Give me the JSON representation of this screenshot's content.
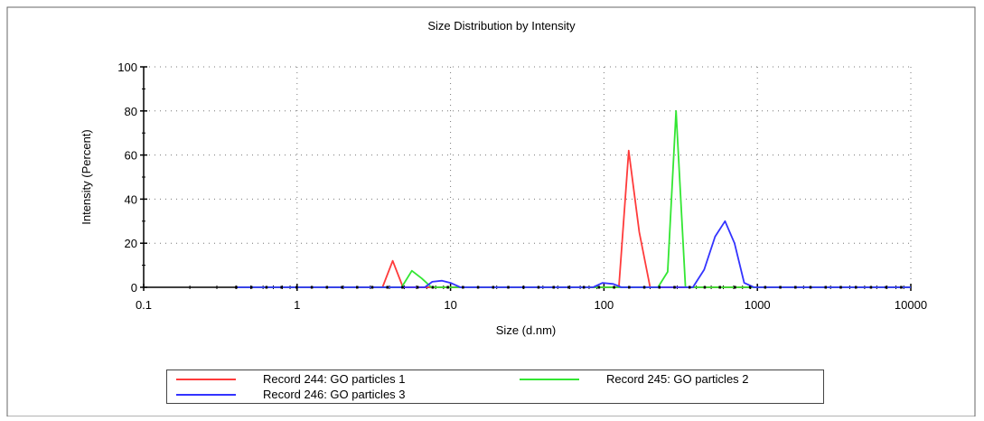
{
  "chart_data": {
    "type": "line",
    "title": "Size Distribution by Intensity",
    "xlabel": "Size (d.nm)",
    "ylabel": "Intensity (Percent)",
    "xscale": "log",
    "xlim": [
      0.1,
      10000
    ],
    "ylim": [
      0,
      100
    ],
    "x_ticks": [
      "0.1",
      "1",
      "10",
      "100",
      "1000",
      "10000"
    ],
    "y_ticks": [
      "0",
      "20",
      "40",
      "60",
      "80",
      "100"
    ],
    "grid": true,
    "legend_position": "bottom",
    "series": [
      {
        "name": "Record 244: GO particles 1",
        "color": "#ff3b3b",
        "points": [
          [
            0.4,
            0
          ],
          [
            3.6,
            0
          ],
          [
            4.2,
            12
          ],
          [
            4.9,
            0
          ],
          [
            80,
            0
          ],
          [
            125,
            0
          ],
          [
            145,
            62
          ],
          [
            170,
            25
          ],
          [
            200,
            0
          ],
          [
            10000,
            0
          ]
        ]
      },
      {
        "name": "Record 245: GO particles 2",
        "color": "#33e633",
        "points": [
          [
            0.4,
            0
          ],
          [
            4.8,
            0
          ],
          [
            5.6,
            7.5
          ],
          [
            6.5,
            4
          ],
          [
            7.5,
            0
          ],
          [
            225,
            0
          ],
          [
            260,
            7
          ],
          [
            295,
            80
          ],
          [
            340,
            0
          ],
          [
            10000,
            0
          ]
        ]
      },
      {
        "name": "Record 246: GO particles 3",
        "color": "#3333ff",
        "points": [
          [
            0.4,
            0
          ],
          [
            6.8,
            0
          ],
          [
            7.6,
            2.5
          ],
          [
            8.8,
            3
          ],
          [
            10,
            2
          ],
          [
            11.6,
            0
          ],
          [
            85,
            0
          ],
          [
            98,
            2
          ],
          [
            115,
            1.5
          ],
          [
            130,
            0
          ],
          [
            380,
            0
          ],
          [
            450,
            8
          ],
          [
            530,
            23
          ],
          [
            615,
            30
          ],
          [
            710,
            20
          ],
          [
            820,
            2
          ],
          [
            950,
            0
          ],
          [
            10000,
            0
          ]
        ]
      }
    ]
  }
}
